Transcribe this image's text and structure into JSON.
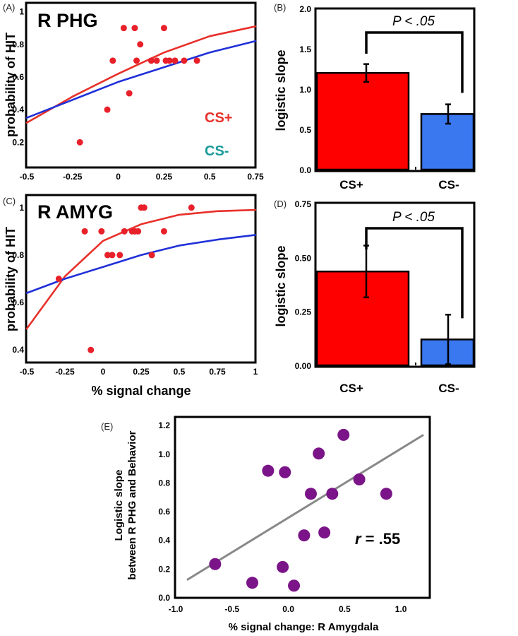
{
  "chart_data": [
    {
      "panel": "(A)",
      "type": "scatter",
      "title": "R PHG",
      "ylabel": "probability of HIT",
      "xlabel": "",
      "xlim": [
        -0.5,
        0.75
      ],
      "ylim": [
        0.05,
        1.05
      ],
      "xticks": [
        "-0.5",
        "-0.25",
        "0",
        "0.25",
        "0.5",
        "0.75"
      ],
      "yticks": [
        "0.2",
        "0.4",
        "0.6",
        "0.8",
        "1"
      ],
      "legend": [
        {
          "label": "CS+",
          "color": "#e8302a"
        },
        {
          "label": "CS-",
          "color": "#1a9a9a"
        }
      ],
      "points": {
        "x": [
          -0.21,
          -0.06,
          -0.03,
          0.03,
          0.06,
          0.09,
          0.1,
          0.12,
          0.18,
          0.21,
          0.25,
          0.26,
          0.28,
          0.31,
          0.36,
          0.43
        ],
        "y": [
          0.2,
          0.4,
          0.7,
          0.9,
          0.5,
          0.9,
          0.7,
          0.8,
          0.7,
          0.7,
          0.9,
          0.7,
          0.7,
          0.7,
          0.7,
          0.7
        ]
      },
      "fits": [
        {
          "name": "CS+",
          "color": "#e8302a",
          "x": [
            -0.5,
            -0.25,
            0,
            0.25,
            0.5,
            0.75
          ],
          "y": [
            0.32,
            0.48,
            0.62,
            0.75,
            0.85,
            0.91
          ]
        },
        {
          "name": "CS-",
          "color": "#2030d8",
          "x": [
            -0.5,
            -0.25,
            0,
            0.25,
            0.5,
            0.75
          ],
          "y": [
            0.35,
            0.46,
            0.57,
            0.66,
            0.75,
            0.82
          ]
        }
      ]
    },
    {
      "panel": "(B)",
      "type": "bar",
      "ylabel": "logistic slope",
      "categories": [
        "CS+",
        "CS-"
      ],
      "values": [
        1.2,
        0.69
      ],
      "errors": [
        0.11,
        0.12
      ],
      "colors": [
        "#ff0000",
        "#3a78f0"
      ],
      "ylim": [
        0,
        2.0
      ],
      "yticks": [
        "0.0",
        "0.5",
        "1.0",
        "1.5",
        "2.0"
      ],
      "annotation": "P < .05"
    },
    {
      "panel": "(C)",
      "type": "scatter",
      "title": "R AMYG",
      "ylabel": "probability of HIT",
      "xlabel": "% signal change",
      "xlim": [
        -0.5,
        1.0
      ],
      "ylim": [
        0.35,
        1.05
      ],
      "xticks": [
        "-0.5",
        "-0.25",
        "0",
        "0.25",
        "0.5",
        "0.75",
        "1"
      ],
      "yticks": [
        "0.4",
        "0.6",
        "0.8",
        "1"
      ],
      "points": {
        "x": [
          -0.29,
          -0.12,
          -0.08,
          -0.01,
          0.03,
          0.06,
          0.11,
          0.14,
          0.19,
          0.21,
          0.23,
          0.25,
          0.27,
          0.32,
          0.4,
          0.58
        ],
        "y": [
          0.7,
          0.9,
          0.4,
          0.9,
          0.8,
          0.8,
          0.8,
          0.9,
          0.9,
          0.9,
          0.9,
          1.0,
          1.0,
          0.8,
          0.9,
          1.0
        ]
      },
      "fits": [
        {
          "name": "CS+",
          "color": "#e8302a",
          "x": [
            -0.5,
            -0.25,
            0,
            0.25,
            0.5,
            0.75,
            1.0
          ],
          "y": [
            0.49,
            0.71,
            0.86,
            0.93,
            0.97,
            0.985,
            0.99
          ]
        },
        {
          "name": "CS-",
          "color": "#2030d8",
          "x": [
            -0.5,
            -0.25,
            0,
            0.25,
            0.5,
            0.75,
            1.0
          ],
          "y": [
            0.64,
            0.7,
            0.75,
            0.8,
            0.84,
            0.865,
            0.885
          ]
        }
      ]
    },
    {
      "panel": "(D)",
      "type": "bar",
      "ylabel": "logistic slope",
      "categories": [
        "CS+",
        "CS-"
      ],
      "values": [
        0.435,
        0.12
      ],
      "errors": [
        0.12,
        0.115
      ],
      "colors": [
        "#ff0000",
        "#3a78f0"
      ],
      "ylim": [
        0,
        0.75
      ],
      "yticks": [
        "0.00",
        "0.25",
        "0.50",
        "0.75"
      ],
      "annotation": "P < .05"
    },
    {
      "panel": "(E)",
      "type": "scatter",
      "ylabel_lines": [
        "Logistic slope",
        "between R PHG and Behavior"
      ],
      "xlabel": "% signal change: R Amygdala",
      "xlim": [
        -1.0,
        1.25
      ],
      "ylim": [
        0.0,
        1.25
      ],
      "xticks": [
        "-1.0",
        "-0.5",
        "0.0",
        "0.5",
        "1.0"
      ],
      "yticks": [
        "0.0",
        "0.2",
        "0.4",
        "0.6",
        "0.8",
        "1.0",
        "1.2"
      ],
      "points": {
        "x": [
          -0.65,
          -0.32,
          -0.18,
          -0.05,
          -0.03,
          0.05,
          0.14,
          0.2,
          0.27,
          0.32,
          0.39,
          0.49,
          0.63,
          0.87
        ],
        "y": [
          0.23,
          0.1,
          0.88,
          0.21,
          0.87,
          0.08,
          0.43,
          0.72,
          1.0,
          0.45,
          0.72,
          1.13,
          0.82,
          0.72
        ]
      },
      "fit": {
        "x": [
          -0.9,
          1.2
        ],
        "y": [
          0.12,
          1.13
        ]
      },
      "annotation_r": "r",
      "annotation_val": " = .55"
    }
  ]
}
